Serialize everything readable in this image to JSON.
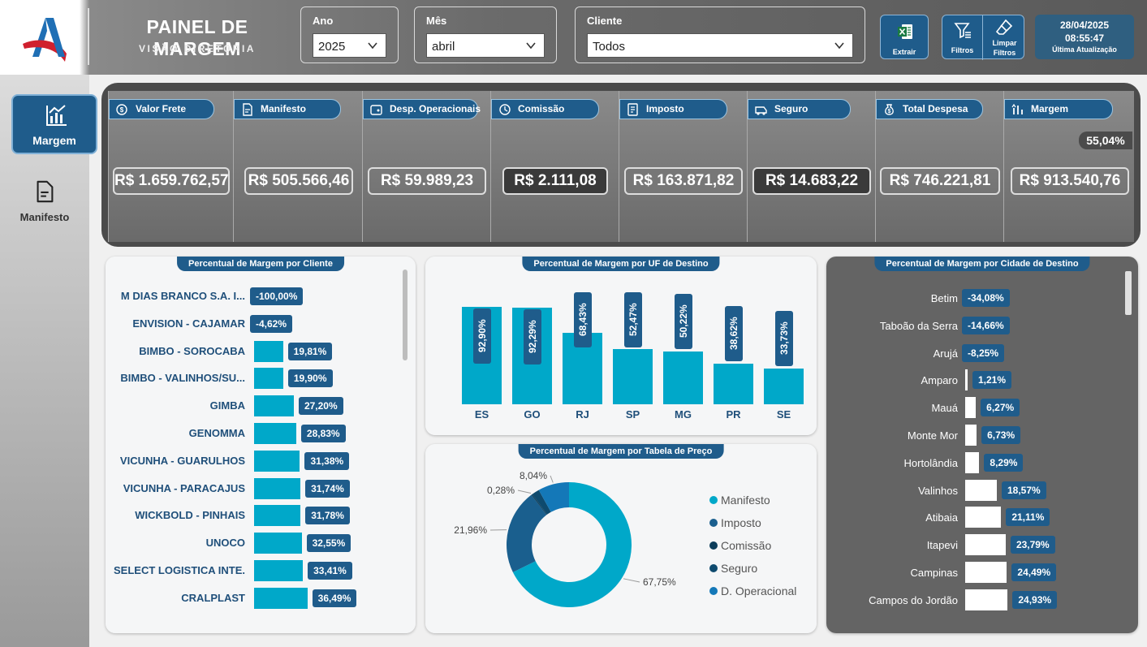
{
  "header": {
    "title": "PAINEL DE MARGEM",
    "subtitle": "VISÃO DIRETORIA",
    "filters": {
      "ano": {
        "label": "Ano",
        "value": "2025"
      },
      "mes": {
        "label": "Mês",
        "value": "abril"
      },
      "cliente": {
        "label": "Cliente",
        "value": "Todos"
      }
    },
    "buttons": {
      "extrair": "Extrair",
      "filtros": "Filtros",
      "limpar_1": "Limpar",
      "limpar_2": "Filtros"
    },
    "update": {
      "date": "28/04/2025",
      "time": "08:55:47",
      "label": "Última Atualização"
    }
  },
  "nav": {
    "margem": "Margem",
    "manifesto": "Manifesto"
  },
  "kpis": [
    {
      "label": "Valor Frete",
      "value": "R$ 1.659.762,57",
      "icon": "money-icon"
    },
    {
      "label": "Manifesto",
      "value": "R$ 505.566,46",
      "icon": "document-icon"
    },
    {
      "label": "Desp. Operacionais",
      "value": "R$ 59.989,23",
      "icon": "wallet-icon"
    },
    {
      "label": "Comissão",
      "value": "R$ 2.111,08",
      "icon": "commission-icon"
    },
    {
      "label": "Imposto",
      "value": "R$ 163.871,82",
      "icon": "tax-icon"
    },
    {
      "label": "Seguro",
      "value": "R$ 14.683,22",
      "icon": "insurance-icon"
    },
    {
      "label": "Total Despesa",
      "value": "R$ 746.221,81",
      "icon": "moneybag-icon"
    },
    {
      "label": "Margem",
      "value": "R$ 913.540,76",
      "icon": "margin-icon",
      "percent": "55,04%"
    }
  ],
  "chart_data": [
    {
      "type": "bar",
      "orientation": "horizontal",
      "title": "Percentual de Margem por Cliente",
      "categories": [
        "M DIAS BRANCO S.A. I...",
        "ENVISION - CAJAMAR",
        "BIMBO - SOROCABA",
        "BIMBO - VALINHOS/SU...",
        "GIMBA",
        "GENOMMA",
        "VICUNHA - GUARULHOS",
        "VICUNHA - PARACAJUS",
        "WICKBOLD - PINHAIS",
        "UNOCO",
        "SELECT LOGISTICA INTE...",
        "CRALPLAST"
      ],
      "values": [
        -100.0,
        -4.62,
        19.81,
        19.9,
        27.2,
        28.83,
        31.38,
        31.74,
        31.78,
        32.55,
        33.41,
        36.49
      ],
      "labels": [
        "-100,00%",
        "-4,62%",
        "19,81%",
        "19,90%",
        "27,20%",
        "28,83%",
        "31,38%",
        "31,74%",
        "31,78%",
        "32,55%",
        "33,41%",
        "36,49%"
      ],
      "color": "#00a8c9"
    },
    {
      "type": "bar",
      "orientation": "vertical",
      "title": "Percentual de Margem por UF de Destino",
      "categories": [
        "ES",
        "GO",
        "RJ",
        "SP",
        "MG",
        "PR",
        "SE"
      ],
      "values": [
        92.9,
        92.29,
        68.43,
        52.47,
        50.22,
        38.62,
        33.73
      ],
      "labels": [
        "92,90%",
        "92,29%",
        "68,43%",
        "52,47%",
        "50,22%",
        "38,62%",
        "33,73%"
      ],
      "color": "#00a8c9"
    },
    {
      "type": "pie",
      "variant": "donut",
      "title": "Percentual de Margem por Tabela de Preço",
      "categories": [
        "Manifesto",
        "Imposto",
        "Comissão",
        "Seguro",
        "D. Operacional"
      ],
      "values": [
        67.75,
        21.96,
        0.28,
        1.97,
        8.04
      ],
      "labels": [
        "67,75%",
        "21,96%",
        "0,28%",
        "",
        "8,04%"
      ],
      "colors": [
        "#00a8c9",
        "#1a5f8e",
        "#0c3d5a",
        "#0e4a6e",
        "#1478b8"
      ],
      "legend_position": "right"
    },
    {
      "type": "bar",
      "orientation": "horizontal",
      "title": "Percentual de Margem por Cidade de Destino",
      "categories": [
        "Betim",
        "Taboão da Serra",
        "Arujá",
        "Amparo",
        "Mauá",
        "Monte Mor",
        "Hortolândia",
        "Valinhos",
        "Atibaia",
        "Itapevi",
        "Campinas",
        "Campos do Jordão"
      ],
      "values": [
        -34.08,
        -14.66,
        -8.25,
        1.21,
        6.27,
        6.73,
        8.29,
        18.57,
        21.11,
        23.79,
        24.49,
        24.93
      ],
      "labels": [
        "-34,08%",
        "-14,66%",
        "-8,25%",
        "1,21%",
        "6,27%",
        "6,73%",
        "8,29%",
        "18,57%",
        "21,11%",
        "23,79%",
        "24,49%",
        "24,93%"
      ],
      "color": "#ffffff"
    }
  ]
}
